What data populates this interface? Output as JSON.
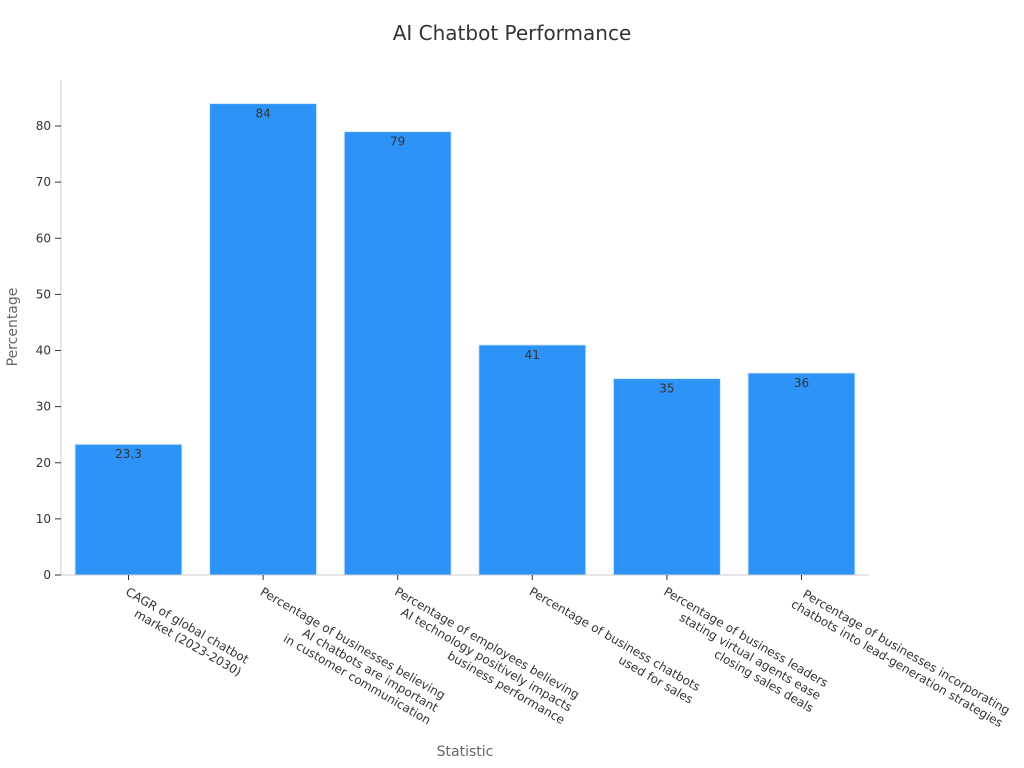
{
  "chart_data": {
    "type": "bar",
    "title": "AI Chatbot Performance",
    "xlabel": "Statistic",
    "ylabel": "Percentage",
    "categories": [
      [
        "CAGR of global chatbot",
        "market (2023-2030)"
      ],
      [
        "Percentage of businesses believing",
        "AI chatbots are important",
        "in customer communication"
      ],
      [
        "Percentage of employees believing",
        "AI technology positively impacts",
        "business performance"
      ],
      [
        "Percentage of business chatbots",
        "used for sales"
      ],
      [
        "Percentage of business leaders",
        "stating virtual agents ease",
        "closing sales deals"
      ],
      [
        "Percentage of businesses incorporating",
        "chatbots into lead-generation strategies"
      ]
    ],
    "values": [
      23.3,
      84,
      79,
      41,
      35,
      36
    ],
    "data_labels": [
      "23.3",
      "84",
      "79",
      "41",
      "35",
      "36"
    ],
    "y_ticks": [
      0,
      10,
      20,
      30,
      40,
      50,
      60,
      70,
      80
    ],
    "ylim": [
      0,
      88.2
    ],
    "bar_color": "#2e93f7",
    "grid": false,
    "legend": "none"
  }
}
